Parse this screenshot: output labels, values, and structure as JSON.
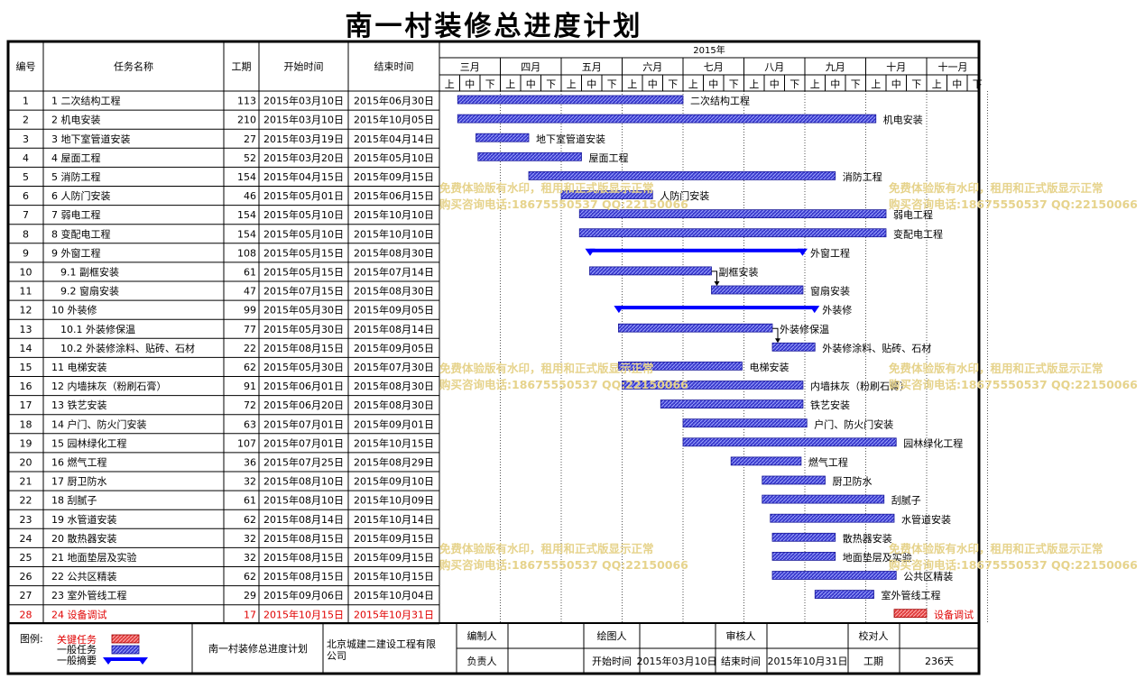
{
  "title": "南一村装修总进度计划",
  "headers": {
    "id": "编号",
    "name": "任务名称",
    "duration": "工期",
    "start": "开始时间",
    "end": "结束时间"
  },
  "timeline": {
    "year": "2015年",
    "months": [
      "三月",
      "四月",
      "五月",
      "六月",
      "七月",
      "八月",
      "九月",
      "十月",
      "十一月"
    ],
    "dekads": [
      "上",
      "中",
      "下"
    ]
  },
  "tasks": [
    {
      "id": "1",
      "name": "1 二次结构工程",
      "duration": "113",
      "start": "2015年03月10日",
      "end": "2015年06月30日",
      "bar_label": "二次结构工程"
    },
    {
      "id": "2",
      "name": "2 机电安装",
      "duration": "210",
      "start": "2015年03月10日",
      "end": "2015年10月05日",
      "bar_label": "机电安装"
    },
    {
      "id": "3",
      "name": "3 地下室管道安装",
      "duration": "27",
      "start": "2015年03月19日",
      "end": "2015年04月14日",
      "bar_label": "地下室管道安装"
    },
    {
      "id": "4",
      "name": "4 屋面工程",
      "duration": "52",
      "start": "2015年03月20日",
      "end": "2015年05月10日",
      "bar_label": "屋面工程"
    },
    {
      "id": "5",
      "name": "5 消防工程",
      "duration": "154",
      "start": "2015年04月15日",
      "end": "2015年09月15日",
      "bar_label": "消防工程"
    },
    {
      "id": "6",
      "name": "6 人防门安装",
      "duration": "46",
      "start": "2015年05月01日",
      "end": "2015年06月15日",
      "bar_label": "人防门安装"
    },
    {
      "id": "7",
      "name": "7 弱电工程",
      "duration": "154",
      "start": "2015年05月10日",
      "end": "2015年10月10日",
      "bar_label": "弱电工程"
    },
    {
      "id": "8",
      "name": "8 变配电工程",
      "duration": "154",
      "start": "2015年05月10日",
      "end": "2015年10月10日",
      "bar_label": "变配电工程"
    },
    {
      "id": "9",
      "name": "9 外窗工程",
      "duration": "108",
      "start": "2015年05月15日",
      "end": "2015年08月30日",
      "bar_label": "外窗工程",
      "summary": true
    },
    {
      "id": "10",
      "name": "9.1 副框安装",
      "duration": "61",
      "start": "2015年05月15日",
      "end": "2015年07月14日",
      "bar_label": "副框安装",
      "indent": true
    },
    {
      "id": "11",
      "name": "9.2 窗扇安装",
      "duration": "47",
      "start": "2015年07月15日",
      "end": "2015年08月30日",
      "bar_label": "窗扇安装",
      "indent": true
    },
    {
      "id": "12",
      "name": "10 外装修",
      "duration": "99",
      "start": "2015年05月30日",
      "end": "2015年09月05日",
      "bar_label": "外装修",
      "summary": true
    },
    {
      "id": "13",
      "name": "10.1 外装修保温",
      "duration": "77",
      "start": "2015年05月30日",
      "end": "2015年08月14日",
      "bar_label": "外装修保温",
      "indent": true
    },
    {
      "id": "14",
      "name": "10.2 外装修涂料、贴砖、石材",
      "duration": "22",
      "start": "2015年08月15日",
      "end": "2015年09月05日",
      "bar_label": "外装修涂料、贴砖、石材",
      "indent": true
    },
    {
      "id": "15",
      "name": "11 电梯安装",
      "duration": "62",
      "start": "2015年05月30日",
      "end": "2015年07月30日",
      "bar_label": "电梯安装"
    },
    {
      "id": "16",
      "name": "12 内墙抹灰（粉刷石膏）",
      "duration": "91",
      "start": "2015年06月01日",
      "end": "2015年08月30日",
      "bar_label": "内墙抹灰（粉刷石膏）"
    },
    {
      "id": "17",
      "name": "13 铁艺安装",
      "duration": "72",
      "start": "2015年06月20日",
      "end": "2015年08月30日",
      "bar_label": "铁艺安装"
    },
    {
      "id": "18",
      "name": "14 户门、防火门安装",
      "duration": "63",
      "start": "2015年07月01日",
      "end": "2015年09月01日",
      "bar_label": "户门、防火门安装"
    },
    {
      "id": "19",
      "name": "15 园林绿化工程",
      "duration": "107",
      "start": "2015年07月01日",
      "end": "2015年10月15日",
      "bar_label": "园林绿化工程"
    },
    {
      "id": "20",
      "name": "16 燃气工程",
      "duration": "36",
      "start": "2015年07月25日",
      "end": "2015年08月29日",
      "bar_label": "燃气工程"
    },
    {
      "id": "21",
      "name": "17 厨卫防水",
      "duration": "32",
      "start": "2015年08月10日",
      "end": "2015年09月10日",
      "bar_label": "厨卫防水"
    },
    {
      "id": "22",
      "name": "18 刮腻子",
      "duration": "61",
      "start": "2015年08月10日",
      "end": "2015年10月09日",
      "bar_label": "刮腻子"
    },
    {
      "id": "23",
      "name": "19 水管道安装",
      "duration": "62",
      "start": "2015年08月14日",
      "end": "2015年10月14日",
      "bar_label": "水管道安装"
    },
    {
      "id": "24",
      "name": "20 散热器安装",
      "duration": "32",
      "start": "2015年08月15日",
      "end": "2015年09月15日",
      "bar_label": "散热器安装"
    },
    {
      "id": "25",
      "name": "21 地面垫层及实验",
      "duration": "32",
      "start": "2015年08月15日",
      "end": "2015年09月15日",
      "bar_label": "地面垫层及实验"
    },
    {
      "id": "26",
      "name": "22 公共区精装",
      "duration": "62",
      "start": "2015年08月15日",
      "end": "2015年10月15日",
      "bar_label": "公共区精装"
    },
    {
      "id": "27",
      "name": "23 室外管线工程",
      "duration": "29",
      "start": "2015年09月06日",
      "end": "2015年10月04日",
      "bar_label": "室外管线工程"
    },
    {
      "id": "28",
      "name": "24 设备调试",
      "duration": "17",
      "start": "2015年10月15日",
      "end": "2015年10月31日",
      "bar_label": "设备调试",
      "critical": true
    }
  ],
  "footer": {
    "legend_title": "图例:",
    "legend_items": [
      "关键任务",
      "一般任务",
      "一般摘要"
    ],
    "project_name": "南一村装修总进度计划",
    "company": "北京城建二建设工程有限公司",
    "labels": {
      "compiler": "编制人",
      "drafter": "绘图人",
      "reviewer": "审核人",
      "checker": "校对人",
      "responsible": "负责人",
      "start": "开始时间",
      "end": "结束时间",
      "duration": "工期"
    },
    "start_value": "2015年03月10日",
    "end_value": "2015年10月31日",
    "duration_value": "236天"
  },
  "watermark": {
    "line1": "免费体验版有水印，租用和正式版显示正常",
    "line2": "购买咨询电话:18675550537 QQ:22150066"
  },
  "colors": {
    "task": "#3a3acc",
    "summary": "#0000ff",
    "critical": "#e04040",
    "critical_text": "#e00000",
    "watermark": "#e6d38c"
  },
  "chart_data": {
    "type": "gantt",
    "title": "南一村装修总进度计划",
    "year": "2015年",
    "tasks": [
      {
        "name": "二次结构工程",
        "start": "2015-03-10",
        "end": "2015-06-30",
        "duration": 113
      },
      {
        "name": "机电安装",
        "start": "2015-03-10",
        "end": "2015-10-05",
        "duration": 210
      },
      {
        "name": "地下室管道安装",
        "start": "2015-03-19",
        "end": "2015-04-14",
        "duration": 27
      },
      {
        "name": "屋面工程",
        "start": "2015-03-20",
        "end": "2015-05-10",
        "duration": 52
      },
      {
        "name": "消防工程",
        "start": "2015-04-15",
        "end": "2015-09-15",
        "duration": 154
      },
      {
        "name": "人防门安装",
        "start": "2015-05-01",
        "end": "2015-06-15",
        "duration": 46
      },
      {
        "name": "弱电工程",
        "start": "2015-05-10",
        "end": "2015-10-10",
        "duration": 154
      },
      {
        "name": "变配电工程",
        "start": "2015-05-10",
        "end": "2015-10-10",
        "duration": 154
      },
      {
        "name": "外窗工程",
        "start": "2015-05-15",
        "end": "2015-08-30",
        "duration": 108,
        "summary": true
      },
      {
        "name": "副框安装",
        "start": "2015-05-15",
        "end": "2015-07-14",
        "duration": 61
      },
      {
        "name": "窗扇安装",
        "start": "2015-07-15",
        "end": "2015-08-30",
        "duration": 47
      },
      {
        "name": "外装修",
        "start": "2015-05-30",
        "end": "2015-09-05",
        "duration": 99,
        "summary": true
      },
      {
        "name": "外装修保温",
        "start": "2015-05-30",
        "end": "2015-08-14",
        "duration": 77
      },
      {
        "name": "外装修涂料、贴砖、石材",
        "start": "2015-08-15",
        "end": "2015-09-05",
        "duration": 22
      },
      {
        "name": "电梯安装",
        "start": "2015-05-30",
        "end": "2015-07-30",
        "duration": 62
      },
      {
        "name": "内墙抹灰（粉刷石膏）",
        "start": "2015-06-01",
        "end": "2015-08-30",
        "duration": 91
      },
      {
        "name": "铁艺安装",
        "start": "2015-06-20",
        "end": "2015-08-30",
        "duration": 72
      },
      {
        "name": "户门、防火门安装",
        "start": "2015-07-01",
        "end": "2015-09-01",
        "duration": 63
      },
      {
        "name": "园林绿化工程",
        "start": "2015-07-01",
        "end": "2015-10-15",
        "duration": 107
      },
      {
        "name": "燃气工程",
        "start": "2015-07-25",
        "end": "2015-08-29",
        "duration": 36
      },
      {
        "name": "厨卫防水",
        "start": "2015-08-10",
        "end": "2015-09-10",
        "duration": 32
      },
      {
        "name": "刮腻子",
        "start": "2015-08-10",
        "end": "2015-10-09",
        "duration": 61
      },
      {
        "name": "水管道安装",
        "start": "2015-08-14",
        "end": "2015-10-14",
        "duration": 62
      },
      {
        "name": "散热器安装",
        "start": "2015-08-15",
        "end": "2015-09-15",
        "duration": 32
      },
      {
        "name": "地面垫层及实验",
        "start": "2015-08-15",
        "end": "2015-09-15",
        "duration": 32
      },
      {
        "name": "公共区精装",
        "start": "2015-08-15",
        "end": "2015-10-15",
        "duration": 62
      },
      {
        "name": "室外管线工程",
        "start": "2015-09-06",
        "end": "2015-10-04",
        "duration": 29
      },
      {
        "name": "设备调试",
        "start": "2015-10-15",
        "end": "2015-10-31",
        "duration": 17,
        "critical": true
      }
    ],
    "links": [
      [
        "副框安装",
        "窗扇安装"
      ],
      [
        "外装修保温",
        "外装修涂料、贴砖、石材"
      ]
    ],
    "xlim": [
      "2015-03-01",
      "2015-11-20"
    ],
    "grid": true
  }
}
